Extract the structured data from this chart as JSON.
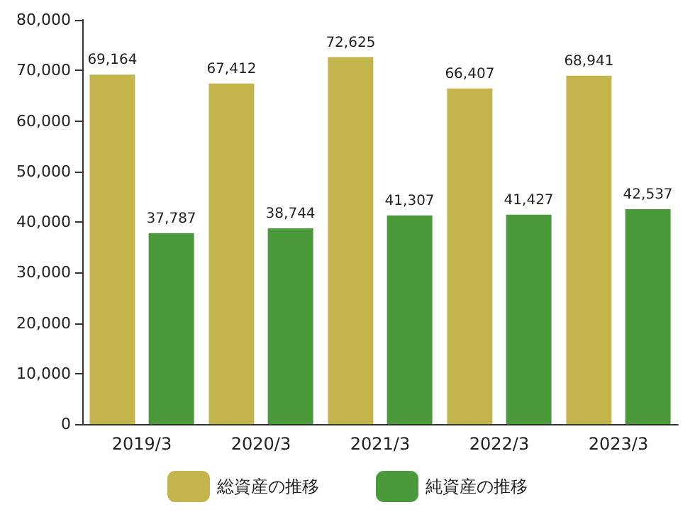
{
  "chart_data": {
    "type": "bar",
    "categories": [
      "2019/3",
      "2020/3",
      "2021/3",
      "2022/3",
      "2023/3"
    ],
    "series": [
      {
        "name": "総資産の推移",
        "color": "#c4b44c",
        "values": [
          69164,
          67412,
          72625,
          66407,
          68941
        ],
        "value_labels": [
          "69,164",
          "67,412",
          "72,625",
          "66,407",
          "68,941"
        ]
      },
      {
        "name": "純資産の推移",
        "color": "#4a9a3c",
        "values": [
          37787,
          38744,
          41307,
          41427,
          42537
        ],
        "value_labels": [
          "37,787",
          "38,744",
          "41,307",
          "41,427",
          "42,537"
        ]
      }
    ],
    "ylim": [
      0,
      80000
    ],
    "yticks": [
      0,
      {
        "value": 10000,
        "label": "10,000"
      },
      {
        "value": 20000,
        "label": "20,000"
      },
      {
        "value": 30000,
        "label": "30,000"
      },
      {
        "value": 40000,
        "label": "40,000"
      },
      {
        "value": 50000,
        "label": "50,000"
      },
      {
        "value": 60000,
        "label": "60,000"
      },
      {
        "value": 70000,
        "label": "70,000"
      },
      {
        "value": 80000,
        "label": "80,000"
      }
    ],
    "grid": false,
    "legend": "bottom"
  }
}
